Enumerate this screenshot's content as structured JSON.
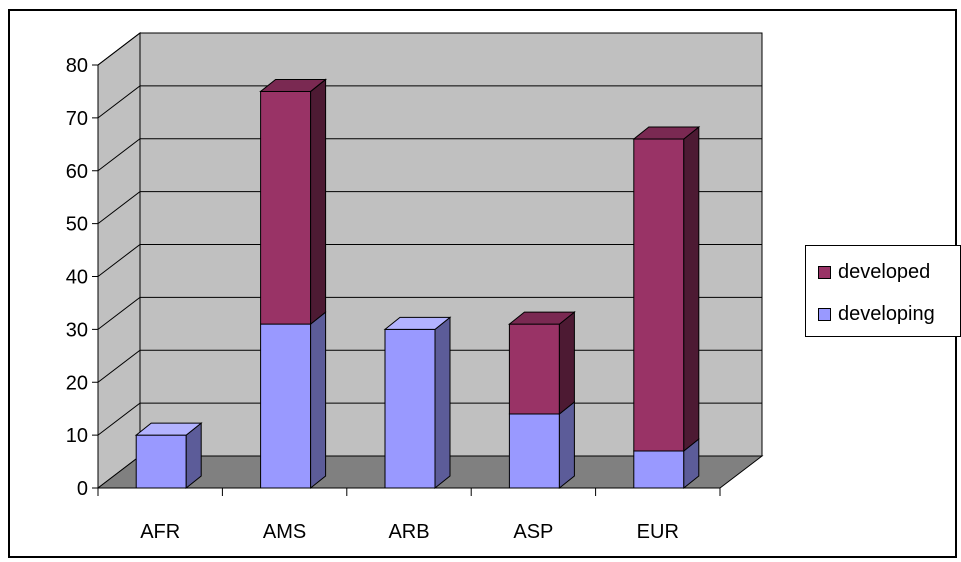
{
  "chart_data": {
    "type": "bar",
    "stacked": true,
    "three_d": true,
    "categories": [
      "AFR",
      "AMS",
      "ARB",
      "ASP",
      "EUR"
    ],
    "series": [
      {
        "name": "developing",
        "values": [
          10,
          31,
          30,
          14,
          7
        ]
      },
      {
        "name": "developed",
        "values": [
          0,
          44,
          0,
          17,
          59
        ]
      }
    ],
    "ylim": [
      0,
      80
    ],
    "yticks": [
      "0",
      "10",
      "20",
      "30",
      "40",
      "50",
      "60",
      "70",
      "80"
    ],
    "grid": true,
    "legend_position": "right"
  },
  "colors": {
    "developing_front": "#9999ff",
    "developing_top": "#b3b3ff",
    "developing_side": "#5c5c99",
    "developed_front": "#993366",
    "developed_top": "#7a2952",
    "developed_side": "#4d1a33",
    "back_wall": "#c0c0c0",
    "floor": "#808080",
    "gridline": "#000000"
  },
  "legend": {
    "items": [
      {
        "label": "developed",
        "color": "#993366"
      },
      {
        "label": "developing",
        "color": "#9999ff"
      }
    ]
  }
}
